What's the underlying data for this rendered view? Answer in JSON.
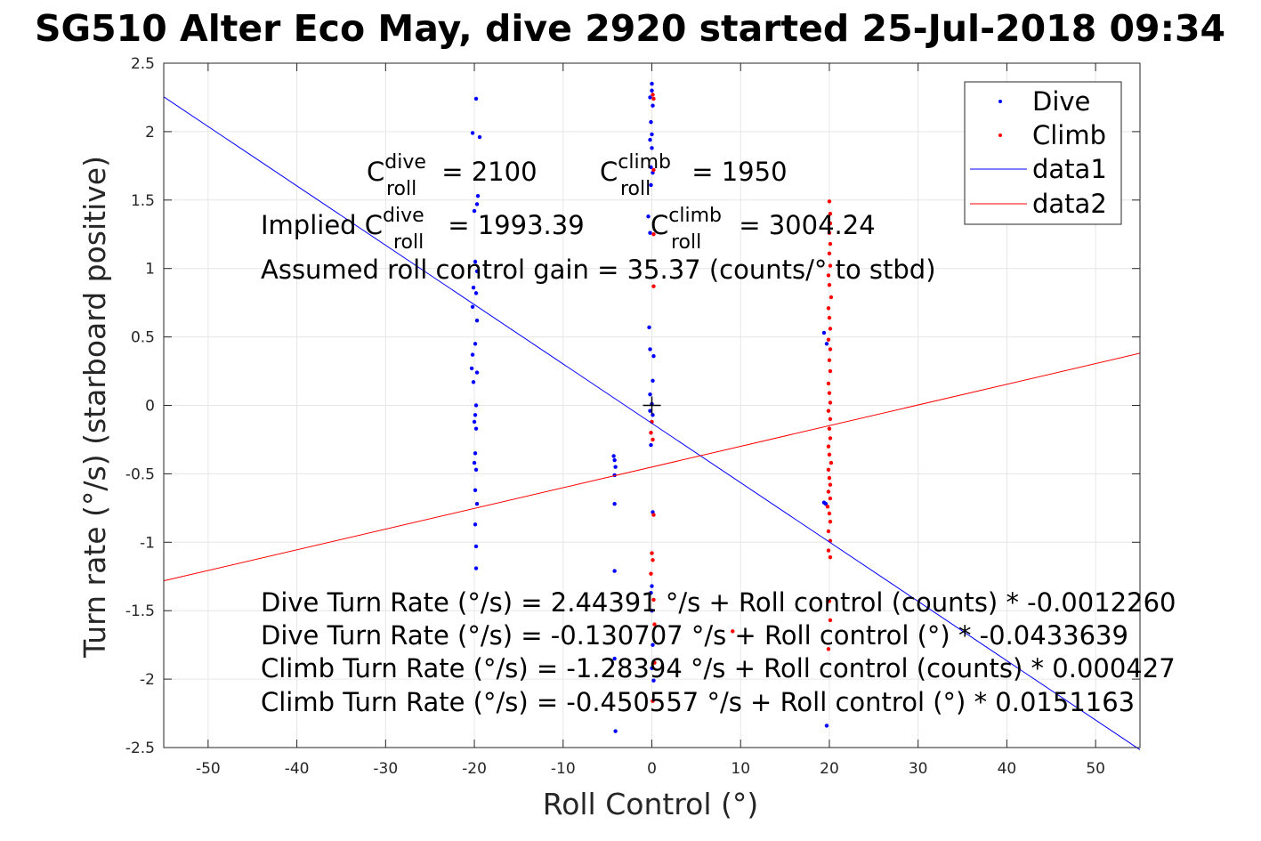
{
  "chart_data": {
    "type": "scatter",
    "title": "SG510 Alter Eco May, dive 2920 started 25-Jul-2018 09:34",
    "xlabel": "Roll Control (°)",
    "ylabel": "Turn rate (°/s) (starboard positive)",
    "xlim": [
      -55,
      55
    ],
    "ylim": [
      -2.5,
      2.5
    ],
    "x_ticks": [
      -50,
      -40,
      -30,
      -20,
      -10,
      0,
      10,
      20,
      30,
      40,
      50
    ],
    "x_tick_labels": [
      "-50",
      "-40",
      "-30",
      "-20",
      "-10",
      "0",
      "10",
      "20",
      "30",
      "40",
      "50"
    ],
    "y_ticks": [
      -2.5,
      -2,
      -1.5,
      -1,
      -0.5,
      0,
      0.5,
      1,
      1.5,
      2,
      2.5
    ],
    "y_tick_labels": [
      "-2.5",
      "-2",
      "-1.5",
      "-1",
      "-0.5",
      "0",
      "0.5",
      "1",
      "1.5",
      "2",
      "2.5"
    ],
    "grid": true,
    "legend_position": "top-right",
    "colors": {
      "dive": "#0000ff",
      "climb": "#ff0000",
      "axes": "#262626",
      "grid": "#e6e6e6"
    },
    "series": [
      {
        "name": "Dive",
        "kind": "points",
        "color": "#0000ff",
        "points": [
          [
            -20.2,
            1.99
          ],
          [
            -19.8,
            2.24
          ],
          [
            -19.4,
            1.96
          ],
          [
            -20.0,
            1.42
          ],
          [
            -19.7,
            1.47
          ],
          [
            -19.6,
            1.53
          ],
          [
            -19.9,
            1.05
          ],
          [
            -19.7,
            0.98
          ],
          [
            -20.1,
            0.86
          ],
          [
            -19.8,
            0.82
          ],
          [
            -20.2,
            0.72
          ],
          [
            -19.7,
            0.62
          ],
          [
            -19.9,
            0.45
          ],
          [
            -20.2,
            0.37
          ],
          [
            -20.3,
            0.27
          ],
          [
            -19.7,
            0.24
          ],
          [
            -20.1,
            0.17
          ],
          [
            -19.8,
            0.0
          ],
          [
            -19.9,
            -0.07
          ],
          [
            -20.0,
            -0.12
          ],
          [
            -19.8,
            -0.17
          ],
          [
            -19.9,
            -0.35
          ],
          [
            -20.0,
            -0.42
          ],
          [
            -19.8,
            -0.47
          ],
          [
            -19.9,
            -0.62
          ],
          [
            -19.7,
            -0.72
          ],
          [
            -19.9,
            -0.87
          ],
          [
            -19.8,
            -1.03
          ],
          [
            -19.8,
            -1.19
          ],
          [
            -4.3,
            -0.37
          ],
          [
            -4.2,
            -0.4
          ],
          [
            -4.1,
            -0.45
          ],
          [
            -4.2,
            -0.51
          ],
          [
            -4.2,
            -0.72
          ],
          [
            -4.2,
            -1.21
          ],
          [
            -4.2,
            -1.85
          ],
          [
            -4.1,
            -2.38
          ],
          [
            0.0,
            2.35
          ],
          [
            0.0,
            2.3
          ],
          [
            -0.2,
            2.25
          ],
          [
            0.1,
            2.19
          ],
          [
            -0.1,
            2.07
          ],
          [
            0.0,
            1.98
          ],
          [
            -0.2,
            1.94
          ],
          [
            0.0,
            1.88
          ],
          [
            -0.1,
            1.74
          ],
          [
            0.1,
            1.7
          ],
          [
            -0.1,
            1.61
          ],
          [
            -0.4,
            1.38
          ],
          [
            -0.2,
            1.26
          ],
          [
            -0.3,
            0.57
          ],
          [
            -0.2,
            0.41
          ],
          [
            0.2,
            0.36
          ],
          [
            0.1,
            0.18
          ],
          [
            -0.2,
            0.08
          ],
          [
            0.0,
            0.01
          ],
          [
            -0.2,
            -0.04
          ],
          [
            0.1,
            -0.07
          ],
          [
            -0.1,
            -0.29
          ],
          [
            0.1,
            -0.78
          ],
          [
            0.0,
            -1.32
          ],
          [
            -0.1,
            -1.37
          ],
          [
            0.0,
            -1.5
          ],
          [
            0.1,
            -1.75
          ],
          [
            0.0,
            -1.92
          ],
          [
            0.2,
            -2.01
          ],
          [
            19.4,
            0.53
          ],
          [
            19.7,
            0.45
          ],
          [
            19.6,
            -0.72
          ],
          [
            19.4,
            -0.71
          ],
          [
            19.7,
            -2.34
          ]
        ]
      },
      {
        "name": "Climb",
        "kind": "points",
        "color": "#ff0000",
        "points": [
          [
            0.1,
            2.27
          ],
          [
            0.2,
            2.24
          ],
          [
            0.2,
            1.72
          ],
          [
            0.2,
            1.25
          ],
          [
            0.2,
            0.87
          ],
          [
            0.0,
            -0.12
          ],
          [
            -0.1,
            -0.2
          ],
          [
            0.1,
            -0.25
          ],
          [
            0.2,
            -0.8
          ],
          [
            0.0,
            -1.08
          ],
          [
            0.1,
            -1.13
          ],
          [
            -0.1,
            -1.23
          ],
          [
            0.2,
            -1.42
          ],
          [
            0.3,
            -1.6
          ],
          [
            9.1,
            -1.65
          ],
          [
            0.3,
            -1.88
          ],
          [
            0.1,
            -2.16
          ],
          [
            20.0,
            1.49
          ],
          [
            20.1,
            1.4
          ],
          [
            20.1,
            1.33
          ],
          [
            20.0,
            1.26
          ],
          [
            20.1,
            1.18
          ],
          [
            20.0,
            1.11
          ],
          [
            20.1,
            1.02
          ],
          [
            19.9,
            0.95
          ],
          [
            20.0,
            0.88
          ],
          [
            20.2,
            0.79
          ],
          [
            19.9,
            0.71
          ],
          [
            20.0,
            0.64
          ],
          [
            20.1,
            0.56
          ],
          [
            19.9,
            0.48
          ],
          [
            20.1,
            0.41
          ],
          [
            20.0,
            0.33
          ],
          [
            20.1,
            0.25
          ],
          [
            19.9,
            0.16
          ],
          [
            20.0,
            0.09
          ],
          [
            20.1,
            0.02
          ],
          [
            19.9,
            -0.04
          ],
          [
            20.1,
            -0.1
          ],
          [
            20.0,
            -0.17
          ],
          [
            20.1,
            -0.24
          ],
          [
            19.9,
            -0.3
          ],
          [
            20.0,
            -0.36
          ],
          [
            20.2,
            -0.42
          ],
          [
            19.9,
            -0.47
          ],
          [
            20.0,
            -0.53
          ],
          [
            20.1,
            -0.58
          ],
          [
            19.9,
            -0.63
          ],
          [
            20.1,
            -0.68
          ],
          [
            19.8,
            -0.74
          ],
          [
            20.0,
            -0.79
          ],
          [
            20.1,
            -0.85
          ],
          [
            19.9,
            -0.92
          ],
          [
            20.1,
            -0.99
          ],
          [
            19.9,
            -1.06
          ],
          [
            20.1,
            -1.11
          ],
          [
            20.0,
            -1.43
          ],
          [
            20.1,
            -1.57
          ],
          [
            19.9,
            -1.78
          ]
        ]
      },
      {
        "name": "data1",
        "kind": "line",
        "color": "#0000ff",
        "x": [
          -55,
          55
        ],
        "y": [
          2.254,
          -2.516
        ]
      },
      {
        "name": "data2",
        "kind": "line",
        "color": "#ff0000",
        "x": [
          -55,
          55
        ],
        "y": [
          -1.282,
          0.381
        ]
      }
    ],
    "origin_marker": {
      "symbol": "+",
      "x": 0,
      "y": 0
    }
  },
  "annotations": {
    "c_dive": {
      "base": "C",
      "sup": "dive",
      "sub": "roll",
      "value": " = 2100"
    },
    "c_climb": {
      "base": "C",
      "sup": "climb",
      "sub": "roll",
      "value": " = 1950"
    },
    "implied_dive": {
      "prefix": "Implied C",
      "sup": "dive",
      "sub": "roll",
      "value": " = 1993.39"
    },
    "implied_climb": {
      "base": "C",
      "sup": "climb",
      "sub": "roll",
      "value": " = 3004.24"
    },
    "gain": "Assumed roll control gain = 35.37 (counts/° to stbd)",
    "eq_dive_counts": "Dive Turn Rate (°/s) = 2.44391 °/s + Roll control (counts) * -0.0012260",
    "eq_dive_deg": "Dive Turn Rate (°/s) = -0.130707 °/s + Roll control (°) * -0.0433639",
    "eq_climb_counts": "Climb Turn Rate (°/s) = -1.28394 °/s + Roll control (counts) * 0.000427",
    "eq_climb_deg": "Climb Turn Rate (°/s) = -0.450557 °/s + Roll control (°) * 0.0151163"
  }
}
